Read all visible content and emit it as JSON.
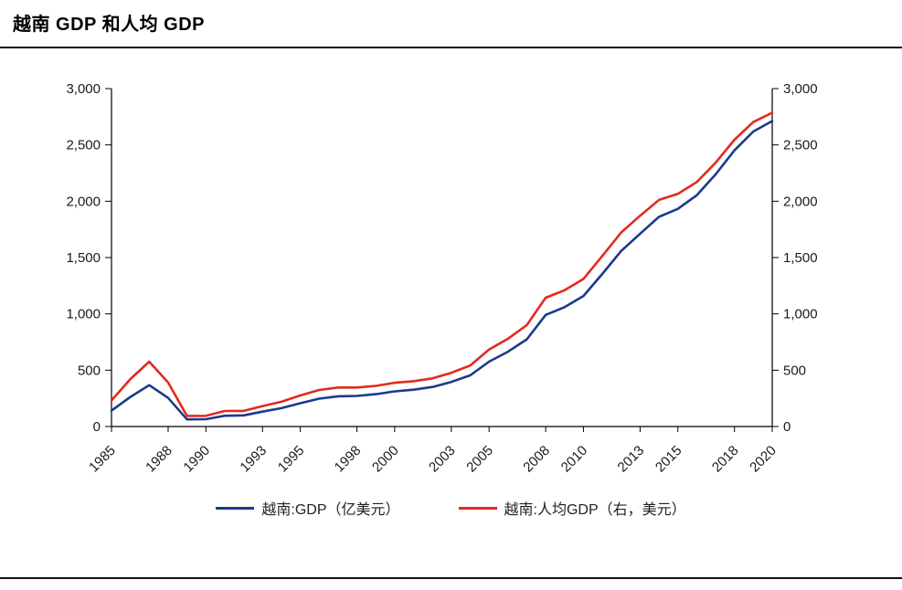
{
  "page": {
    "title": "越南 GDP 和人均 GDP"
  },
  "legend": [
    {
      "label": "越南:GDP（亿美元）",
      "color": "#1b3a8c"
    },
    {
      "label": "越南:人均GDP（右，美元）",
      "color": "#e22a1e"
    }
  ],
  "chart_data": {
    "type": "line",
    "title": "越南 GDP 和人均 GDP",
    "xlabel": "",
    "ylabel_left": "",
    "ylabel_right": "",
    "grid": false,
    "legend_position": "bottom",
    "x": [
      1985,
      1986,
      1987,
      1988,
      1989,
      1990,
      1991,
      1992,
      1993,
      1994,
      1995,
      1996,
      1997,
      1998,
      1999,
      2000,
      2001,
      2002,
      2003,
      2004,
      2005,
      2006,
      2007,
      2008,
      2009,
      2010,
      2011,
      2012,
      2013,
      2014,
      2015,
      2016,
      2017,
      2018,
      2019,
      2020
    ],
    "x_tick_labels": [
      "1985",
      "1988",
      "1990",
      "1993",
      "1995",
      "1998",
      "2000",
      "2003",
      "2005",
      "2008",
      "2010",
      "2013",
      "2015",
      "2018",
      "2020"
    ],
    "left_axis": {
      "range": [
        0,
        3000
      ],
      "ticks": [
        0,
        500,
        1000,
        1500,
        2000,
        2500,
        3000
      ]
    },
    "right_axis": {
      "range": [
        0,
        3000
      ],
      "ticks": [
        0,
        500,
        1000,
        1500,
        2000,
        2500,
        3000
      ]
    },
    "series": [
      {
        "name": "越南:GDP（亿美元）",
        "axis": "left",
        "color": "#1b3a8c",
        "values": [
          141,
          263,
          367,
          254,
          63,
          65,
          96,
          99,
          132,
          163,
          207,
          247,
          268,
          272,
          287,
          312,
          327,
          351,
          396,
          454,
          576,
          664,
          774,
          991,
          1060,
          1159,
          1355,
          1558,
          1712,
          1862,
          1932,
          2053,
          2238,
          2452,
          2619,
          2712
        ]
      },
      {
        "name": "越南:人均GDP（右，美元）",
        "axis": "right",
        "color": "#e22a1e",
        "values": [
          231,
          422,
          576,
          390,
          94,
          95,
          138,
          139,
          182,
          220,
          276,
          324,
          346,
          346,
          361,
          388,
          402,
          427,
          477,
          542,
          683,
          779,
          901,
          1143,
          1210,
          1310,
          1515,
          1722,
          1871,
          2012,
          2065,
          2170,
          2342,
          2546,
          2703,
          2786
        ]
      }
    ]
  }
}
